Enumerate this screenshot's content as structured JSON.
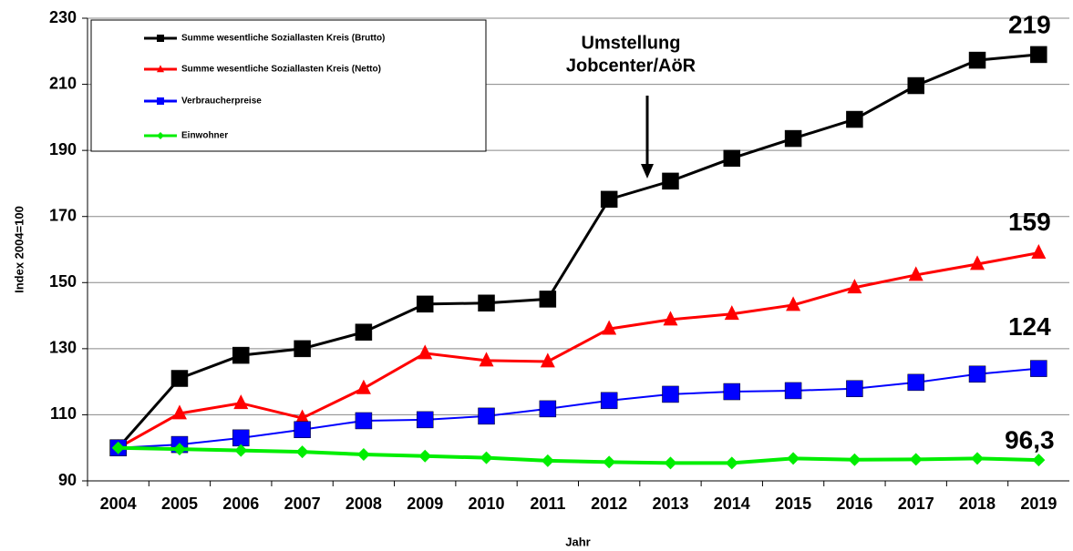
{
  "chart_data": {
    "type": "line",
    "y_label": "Index 2004=100",
    "x_label": "Jahr",
    "annotation": [
      "Umstellung",
      "Jobcenter/AöR"
    ],
    "categories": [
      "2004",
      "2005",
      "2006",
      "2007",
      "2008",
      "2009",
      "2010",
      "2011",
      "2012",
      "2013",
      "2014",
      "2015",
      "2016",
      "2017",
      "2018",
      "2019"
    ],
    "ylim": [
      90,
      230
    ],
    "yticks": [
      90,
      110,
      130,
      150,
      170,
      190,
      210,
      230
    ],
    "grid": true,
    "legend": "top-left",
    "series": [
      {
        "name": "Summe wesentliche Soziallasten Kreis (Brutto)",
        "color": "#000000",
        "marker": "square",
        "values": [
          100,
          121,
          128,
          130,
          135,
          143.5,
          143.8,
          145,
          175.2,
          180.7,
          187.6,
          193.6,
          199.4,
          209.6,
          217.3,
          219
        ],
        "value_labels": [
          null,
          null,
          null,
          null,
          null,
          null,
          null,
          null,
          null,
          null,
          null,
          null,
          null,
          null,
          null,
          "219"
        ]
      },
      {
        "name": "Summe wesentliche Soziallasten Kreis (Netto)",
        "color": "#ff0000",
        "marker": "triangle",
        "values": [
          100,
          110.4,
          113.5,
          109,
          118,
          128.6,
          126.4,
          126.1,
          136,
          138.8,
          140.5,
          143.2,
          148.5,
          152.3,
          155.6,
          159
        ],
        "value_labels": [
          null,
          null,
          null,
          null,
          null,
          null,
          null,
          null,
          null,
          null,
          null,
          null,
          null,
          null,
          null,
          "159"
        ]
      },
      {
        "name": "Verbraucherpreise",
        "color": "#0000ff",
        "marker": "square",
        "values": [
          100,
          101,
          103,
          105.5,
          108.2,
          108.5,
          109.6,
          111.8,
          114.3,
          116.2,
          117,
          117.3,
          117.9,
          119.8,
          122.3,
          124
        ],
        "value_labels": [
          null,
          null,
          null,
          null,
          null,
          null,
          null,
          null,
          null,
          null,
          null,
          null,
          null,
          null,
          null,
          "124"
        ]
      },
      {
        "name": "Einwohner",
        "color": "#00ee00",
        "marker": "diamond",
        "values": [
          100,
          99.6,
          99.2,
          98.8,
          98,
          97.5,
          97,
          96.1,
          95.7,
          95.4,
          95.4,
          96.8,
          96.4,
          96.5,
          96.8,
          96.3
        ],
        "value_labels": [
          null,
          null,
          null,
          null,
          null,
          null,
          null,
          null,
          null,
          null,
          null,
          null,
          null,
          null,
          null,
          "96,3"
        ]
      }
    ]
  }
}
